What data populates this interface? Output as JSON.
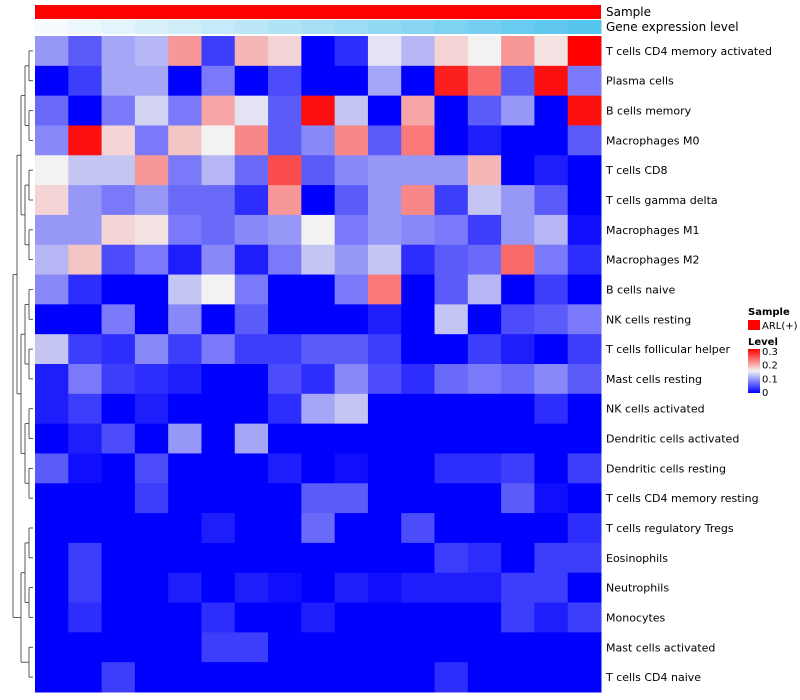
{
  "chart_data": {
    "type": "heatmap",
    "title": "",
    "rows": [
      "T cells CD4 memory activated",
      "Plasma cells",
      "B cells memory",
      "Macrophages M0",
      "T cells CD8",
      "T cells gamma delta",
      "Macrophages M1",
      "Macrophages M2",
      "B cells naive",
      "NK cells resting",
      "T cells follicular helper",
      "Mast cells resting",
      "NK cells activated",
      "Dendritic cells activated",
      "Dendritic cells resting",
      "T cells CD4 memory resting",
      "T cells regulatory  Tregs",
      "Eosinophils",
      "Neutrophils",
      "Monocytes",
      "Mast cells activated",
      "T cells CD4 naive"
    ],
    "n_columns": 17,
    "values": [
      [
        0.1,
        0.06,
        0.11,
        0.12,
        0.22,
        0.04,
        0.2,
        0.18,
        0.0,
        0.03,
        0.15,
        0.12,
        0.18,
        0.16,
        0.22,
        0.17,
        0.32
      ],
      [
        0.0,
        0.04,
        0.11,
        0.11,
        0.0,
        0.08,
        0.0,
        0.05,
        0.0,
        0.0,
        0.11,
        0.0,
        0.3,
        0.25,
        0.06,
        0.31,
        0.08
      ],
      [
        0.07,
        0.0,
        0.08,
        0.14,
        0.08,
        0.21,
        0.15,
        0.06,
        0.31,
        0.13,
        0.0,
        0.21,
        0.0,
        0.06,
        0.1,
        0.0,
        0.31
      ],
      [
        0.09,
        0.31,
        0.18,
        0.08,
        0.19,
        0.16,
        0.23,
        0.06,
        0.09,
        0.23,
        0.06,
        0.24,
        0.0,
        0.02,
        0.0,
        0.0,
        0.06
      ],
      [
        0.16,
        0.13,
        0.13,
        0.22,
        0.08,
        0.12,
        0.07,
        0.27,
        0.06,
        0.09,
        0.1,
        0.1,
        0.1,
        0.2,
        0.0,
        0.02,
        0.0
      ],
      [
        0.18,
        0.1,
        0.08,
        0.1,
        0.07,
        0.07,
        0.03,
        0.22,
        0.0,
        0.06,
        0.1,
        0.23,
        0.04,
        0.13,
        0.1,
        0.06,
        0.0
      ],
      [
        0.1,
        0.1,
        0.18,
        0.17,
        0.08,
        0.07,
        0.09,
        0.1,
        0.16,
        0.08,
        0.1,
        0.09,
        0.08,
        0.04,
        0.1,
        0.12,
        0.01
      ],
      [
        0.12,
        0.19,
        0.05,
        0.08,
        0.02,
        0.09,
        0.02,
        0.08,
        0.13,
        0.1,
        0.13,
        0.03,
        0.06,
        0.07,
        0.25,
        0.08,
        0.03
      ],
      [
        0.09,
        0.03,
        0.0,
        0.0,
        0.13,
        0.16,
        0.08,
        0.0,
        0.0,
        0.08,
        0.24,
        0.0,
        0.06,
        0.12,
        0.0,
        0.04,
        0.0
      ],
      [
        0.0,
        0.0,
        0.08,
        0.0,
        0.09,
        0.0,
        0.06,
        0.0,
        0.0,
        0.0,
        0.02,
        0.0,
        0.13,
        0.0,
        0.05,
        0.06,
        0.08
      ],
      [
        0.13,
        0.04,
        0.03,
        0.09,
        0.04,
        0.08,
        0.04,
        0.04,
        0.06,
        0.06,
        0.04,
        0.0,
        0.0,
        0.04,
        0.02,
        0.0,
        0.04
      ],
      [
        0.02,
        0.08,
        0.04,
        0.03,
        0.02,
        0.0,
        0.0,
        0.05,
        0.03,
        0.09,
        0.05,
        0.03,
        0.07,
        0.08,
        0.07,
        0.09,
        0.06
      ],
      [
        0.02,
        0.04,
        0.0,
        0.02,
        0.0,
        0.0,
        0.0,
        0.03,
        0.11,
        0.13,
        0.0,
        0.0,
        0.0,
        0.0,
        0.0,
        0.03,
        0.0
      ],
      [
        0.0,
        0.02,
        0.05,
        0.0,
        0.1,
        0.0,
        0.11,
        0.0,
        0.0,
        0.0,
        0.0,
        0.0,
        0.0,
        0.0,
        0.0,
        0.0,
        0.0
      ],
      [
        0.06,
        0.01,
        0.0,
        0.05,
        0.0,
        0.0,
        0.0,
        0.02,
        0.0,
        0.01,
        0.0,
        0.0,
        0.03,
        0.03,
        0.04,
        0.0,
        0.04
      ],
      [
        0.0,
        0.0,
        0.0,
        0.04,
        0.0,
        0.0,
        0.0,
        0.0,
        0.06,
        0.06,
        0.0,
        0.0,
        0.0,
        0.0,
        0.06,
        0.01,
        0.0
      ],
      [
        0.0,
        0.0,
        0.0,
        0.0,
        0.0,
        0.02,
        0.0,
        0.0,
        0.07,
        0.0,
        0.0,
        0.05,
        0.0,
        0.0,
        0.0,
        0.0,
        0.03
      ],
      [
        0.0,
        0.04,
        0.0,
        0.0,
        0.0,
        0.0,
        0.0,
        0.0,
        0.0,
        0.0,
        0.0,
        0.0,
        0.04,
        0.03,
        0.0,
        0.04,
        0.04
      ],
      [
        0.0,
        0.04,
        0.0,
        0.0,
        0.02,
        0.0,
        0.02,
        0.01,
        0.0,
        0.02,
        0.01,
        0.02,
        0.02,
        0.02,
        0.04,
        0.04,
        0.0
      ],
      [
        0.0,
        0.03,
        0.0,
        0.0,
        0.0,
        0.03,
        0.0,
        0.0,
        0.02,
        0.0,
        0.0,
        0.0,
        0.0,
        0.0,
        0.04,
        0.02,
        0.04
      ],
      [
        0.0,
        0.0,
        0.0,
        0.0,
        0.0,
        0.04,
        0.04,
        0.0,
        0.0,
        0.0,
        0.0,
        0.0,
        0.0,
        0.0,
        0.0,
        0.0,
        0.0
      ],
      [
        0.0,
        0.0,
        0.04,
        0.0,
        0.0,
        0.0,
        0.0,
        0.0,
        0.0,
        0.0,
        0.0,
        0.0,
        0.03,
        0.0,
        0.0,
        0.0,
        0.0
      ]
    ],
    "column_annotations": [
      {
        "name": "Sample",
        "label": "Sample",
        "color": "#ff0000",
        "type": "categorical"
      },
      {
        "name": "Gene expression level",
        "label": "Gene expression level",
        "type": "gradient",
        "low_color": "#f7fbfe",
        "high_color": "#56c5ee"
      }
    ],
    "legend": {
      "sample_title": "Sample",
      "sample_entry": "ARL(+)",
      "sample_color": "#ff0000",
      "level_title": "Level",
      "level_ticks": [
        "0.3",
        "0.2",
        "0.1",
        "0"
      ],
      "level_tick_values": [
        0.3,
        0.2,
        0.1,
        0
      ]
    },
    "color_scale": {
      "min": 0,
      "mid": 0.16,
      "max": 0.32,
      "low": "#0000ff",
      "mid_color": "#f2f2f2",
      "high": "#ff0000"
    },
    "row_dendrogram": true,
    "legend_position": "right"
  }
}
